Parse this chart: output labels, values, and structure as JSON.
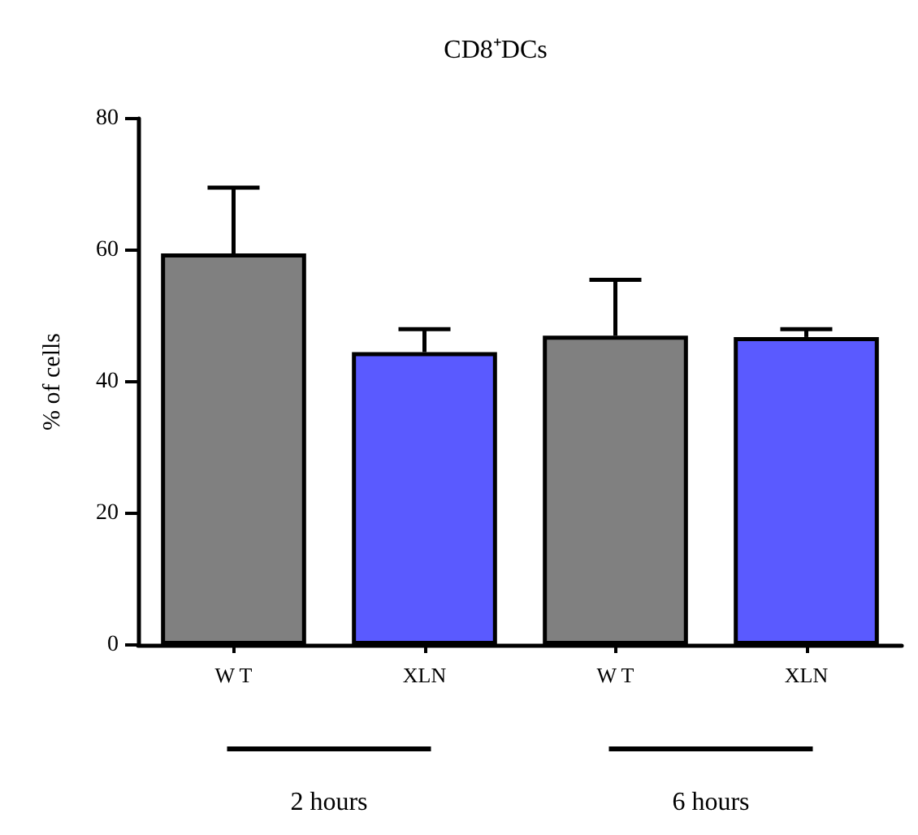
{
  "chart_data": {
    "type": "bar",
    "title": "CD8⁺DCs",
    "ylabel": "% of cells",
    "categories": [
      "W T",
      "XLN",
      "W T",
      "XLN"
    ],
    "values": [
      59.5,
      44.5,
      47,
      46.8
    ],
    "colors": [
      "#808080",
      "#5a5aff",
      "#808080",
      "#5a5aff"
    ],
    "errors": [
      [
        59.5,
        69.5
      ],
      [
        44.5,
        48
      ],
      [
        47,
        55.5
      ],
      [
        46.8,
        48
      ]
    ],
    "ylim": [
      0,
      80
    ],
    "yticks": [
      0,
      20,
      40,
      60,
      80
    ],
    "grid": false,
    "annotations": [
      "2 hours",
      "6 hours"
    ]
  }
}
